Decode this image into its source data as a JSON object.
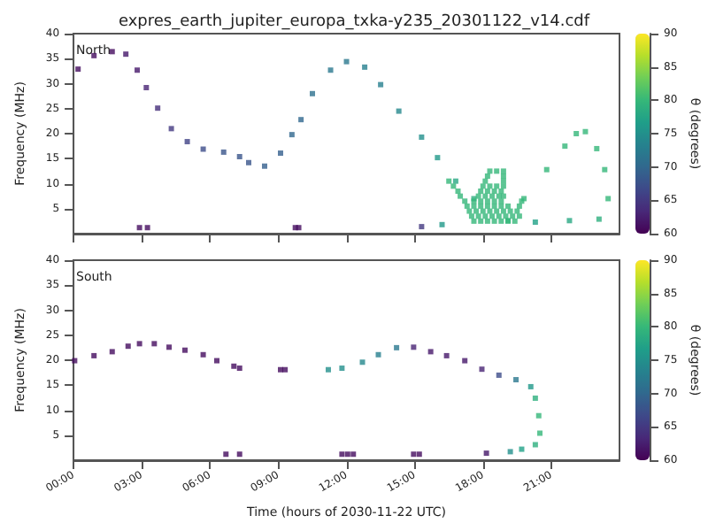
{
  "chart_data": [
    {
      "type": "scatter",
      "title": "expres_earth_jupiter_europa_txka-y235_20301122_v14.cdf",
      "ylabel": "Frequency (MHz)",
      "clabel": "θ (degrees)",
      "annotations": [
        "North"
      ],
      "marker": "square",
      "tick_labels": "y",
      "xlim": [
        0,
        24
      ],
      "xticks": [
        0,
        3,
        6,
        9,
        12,
        15,
        18,
        21
      ],
      "ylim": [
        0,
        40
      ],
      "yticks": [
        5,
        10,
        15,
        20,
        25,
        30,
        35,
        40
      ],
      "clim": [
        60,
        90
      ],
      "cticks": [
        60,
        65,
        70,
        75,
        80,
        85,
        90
      ],
      "x": [
        0.2,
        0.9,
        1.7,
        2.3,
        2.8,
        3.2,
        3.7,
        4.3,
        5.0,
        5.7,
        6.6,
        7.3,
        7.7,
        8.4,
        9.1,
        9.6,
        10.0,
        10.5,
        11.3,
        12.0,
        12.8,
        13.5,
        14.3,
        15.3,
        16.0,
        16.8,
        17.6,
        19.8,
        20.8,
        21.6,
        22.1,
        22.5,
        23.0,
        23.35,
        23.5,
        23.1,
        21.8,
        20.3,
        19.1,
        16.2,
        15.3,
        2.9,
        3.25,
        9.75,
        9.9,
        17.6,
        17.9,
        18.2,
        18.5,
        18.8,
        19.1,
        19.4,
        17.5,
        17.8,
        18.1,
        18.4,
        18.7,
        19.0,
        19.3,
        19.6,
        17.4,
        17.7,
        18.0,
        18.3,
        18.6,
        18.9,
        19.2,
        19.5,
        17.3,
        17.6,
        17.9,
        18.2,
        18.5,
        18.8,
        19.1,
        19.6,
        17.2,
        17.6,
        17.9,
        18.2,
        18.5,
        18.8,
        19.7,
        17.0,
        17.8,
        18.1,
        18.4,
        18.7,
        18.9,
        16.9,
        17.9,
        18.2,
        18.5,
        18.8,
        16.7,
        18.0,
        18.3,
        18.6,
        18.9,
        16.5,
        18.1,
        18.9,
        18.2,
        18.9,
        18.3,
        18.6,
        18.9
      ],
      "values": [
        32.9,
        35.6,
        36.4,
        35.9,
        32.7,
        29.2,
        25.1,
        21.0,
        18.4,
        16.9,
        16.3,
        15.4,
        14.2,
        13.5,
        16.1,
        19.8,
        22.8,
        28.0,
        32.7,
        34.4,
        33.3,
        29.8,
        24.5,
        19.3,
        15.2,
        10.5,
        7.0,
        7.0,
        12.8,
        17.5,
        20.0,
        20.4,
        17.0,
        12.8,
        7.0,
        2.9,
        2.6,
        2.3,
        2.6,
        1.8,
        1.4,
        1.2,
        1.2,
        1.2,
        1.2,
        2.5,
        2.5,
        2.5,
        2.5,
        2.5,
        2.5,
        2.5,
        3.5,
        3.5,
        3.5,
        3.5,
        3.5,
        3.5,
        3.5,
        3.5,
        4.5,
        4.5,
        4.5,
        4.5,
        4.5,
        4.5,
        4.5,
        4.5,
        5.5,
        5.5,
        5.5,
        5.5,
        5.5,
        5.5,
        5.5,
        5.5,
        6.5,
        6.5,
        6.5,
        6.5,
        6.5,
        6.5,
        6.5,
        7.5,
        7.5,
        7.5,
        7.5,
        7.5,
        7.5,
        8.5,
        8.5,
        8.5,
        8.5,
        8.5,
        9.5,
        9.5,
        9.5,
        9.5,
        9.5,
        10.5,
        10.5,
        10.5,
        11.5,
        11.5,
        12.5,
        12.5,
        12.5
      ],
      "cvalues": [
        61,
        61,
        61,
        62,
        62,
        63,
        64,
        65,
        66,
        67,
        68,
        68,
        68,
        69,
        69,
        70,
        70,
        71,
        72,
        72,
        73,
        73,
        74,
        75,
        76,
        78,
        79,
        80,
        80,
        80,
        80,
        80,
        80,
        80,
        80,
        79,
        78,
        77,
        80,
        76,
        65,
        61,
        61,
        61,
        61,
        80,
        80,
        80,
        80,
        80,
        80,
        80,
        80,
        80,
        80,
        80,
        80,
        80,
        80,
        80,
        80,
        80,
        80,
        80,
        80,
        80,
        80,
        80,
        80,
        80,
        80,
        80,
        80,
        80,
        80,
        80,
        80,
        80,
        80,
        80,
        80,
        80,
        80,
        80,
        80,
        80,
        80,
        80,
        80,
        80,
        80,
        80,
        80,
        80,
        80,
        80,
        80,
        80,
        80,
        80,
        80,
        80,
        80,
        80,
        80,
        80,
        80
      ]
    },
    {
      "type": "scatter",
      "xlabel": "Time (hours of 2030-11-22 UTC)",
      "ylabel": "Frequency (MHz)",
      "clabel": "θ (degrees)",
      "annotations": [
        "South"
      ],
      "marker": "square",
      "xlim": [
        0,
        24
      ],
      "xticks": [
        {
          "value": 0,
          "label": "00:00"
        },
        {
          "value": 3,
          "label": "03:00"
        },
        {
          "value": 6,
          "label": "06:00"
        },
        {
          "value": 9,
          "label": "09:00"
        },
        {
          "value": 12,
          "label": "12:00"
        },
        {
          "value": 15,
          "label": "15:00"
        },
        {
          "value": 18,
          "label": "18:00"
        },
        {
          "value": 21,
          "label": "21:00"
        }
      ],
      "ylim": [
        0,
        40
      ],
      "yticks": [
        5,
        10,
        15,
        20,
        25,
        30,
        35,
        40
      ],
      "clim": [
        60,
        90
      ],
      "cticks": [
        60,
        65,
        70,
        75,
        80,
        85,
        90
      ],
      "x": [
        0.05,
        0.9,
        1.7,
        2.4,
        2.9,
        3.55,
        4.2,
        4.9,
        5.7,
        6.3,
        7.05,
        7.3,
        9.1,
        9.3,
        11.2,
        11.8,
        12.7,
        13.4,
        14.2,
        14.95,
        15.7,
        16.4,
        17.2,
        17.95,
        18.7,
        19.45,
        20.1,
        20.3,
        20.45,
        20.5,
        20.3,
        19.7,
        19.2,
        18.15,
        14.95,
        15.2,
        11.8,
        12.05,
        12.3,
        6.7,
        7.3
      ],
      "values": [
        19.9,
        20.9,
        21.7,
        22.8,
        23.3,
        23.3,
        22.6,
        22.0,
        21.1,
        19.9,
        18.8,
        18.4,
        18.1,
        18.1,
        18.1,
        18.4,
        19.6,
        21.1,
        22.5,
        22.6,
        21.7,
        20.9,
        19.9,
        18.2,
        17.0,
        16.1,
        14.7,
        12.4,
        8.9,
        5.4,
        3.1,
        2.2,
        1.7,
        1.4,
        1.2,
        1.2,
        1.2,
        1.2,
        1.2,
        1.2,
        1.2
      ],
      "cvalues": [
        61,
        61,
        61,
        61,
        61,
        61,
        61,
        61,
        61,
        61,
        61,
        61,
        61,
        61,
        75,
        75,
        74,
        73,
        72,
        63,
        62,
        62,
        62,
        63,
        67,
        72,
        76,
        79,
        80,
        80,
        79,
        77,
        75,
        62,
        61,
        61,
        61,
        61,
        61,
        61,
        61
      ]
    }
  ]
}
